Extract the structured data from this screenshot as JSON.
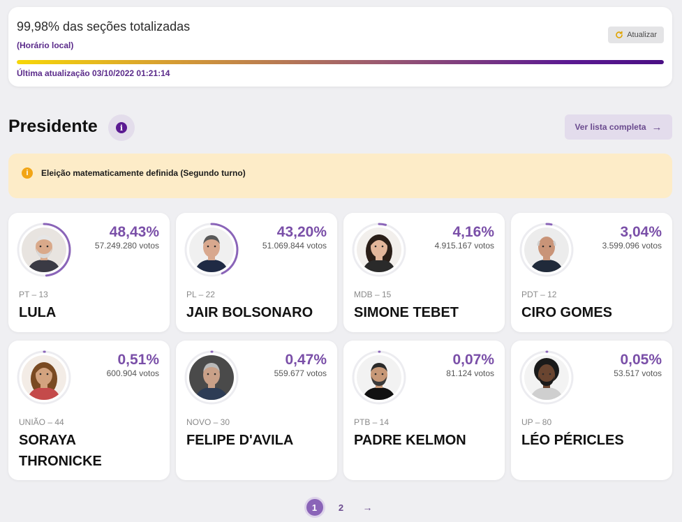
{
  "status": {
    "title": "99,98% das seções totalizadas",
    "subtitle": "(Horário local)",
    "refresh_label": "Atualizar",
    "progress_fraction": 0.9998,
    "last_update": "Última atualização 03/10/2022 01:21:14"
  },
  "section": {
    "title": "Presidente",
    "info_icon_glyph": "i",
    "full_list_label": "Ver lista completa",
    "full_list_arrow": "→"
  },
  "alert": {
    "icon_glyph": "i",
    "text": "Eleição matematicamente definida (Segundo turno)"
  },
  "candidates": [
    {
      "percent": "48,43%",
      "share": 0.4843,
      "votes": "57.249.280 votos",
      "party": "PT – 13",
      "name": "LULA"
    },
    {
      "percent": "43,20%",
      "share": 0.432,
      "votes": "51.069.844 votos",
      "party": "PL – 22",
      "name": "JAIR BOLSONARO"
    },
    {
      "percent": "4,16%",
      "share": 0.0416,
      "votes": "4.915.167 votos",
      "party": "MDB – 15",
      "name": "SIMONE TEBET"
    },
    {
      "percent": "3,04%",
      "share": 0.0304,
      "votes": "3.599.096 votos",
      "party": "PDT – 12",
      "name": "CIRO GOMES"
    },
    {
      "percent": "0,51%",
      "share": 0.0051,
      "votes": "600.904 votos",
      "party": "UNIÃO – 44",
      "name": "SORAYA THRONICKE"
    },
    {
      "percent": "0,47%",
      "share": 0.0047,
      "votes": "559.677 votos",
      "party": "NOVO – 30",
      "name": "FELIPE D'AVILA"
    },
    {
      "percent": "0,07%",
      "share": 0.0007,
      "votes": "81.124 votos",
      "party": "PTB – 14",
      "name": "PADRE KELMON"
    },
    {
      "percent": "0,05%",
      "share": 0.0005,
      "votes": "53.517 votos",
      "party": "UP – 80",
      "name": "LÉO PÉRICLES"
    }
  ],
  "pagination": {
    "pages": [
      "1",
      "2"
    ],
    "current": "1",
    "next_glyph": "→"
  },
  "colors": {
    "accent": "#5b1a92",
    "ring": "#8a64b8",
    "ring_track": "#ececf0",
    "alert_bg": "#fdecc8"
  }
}
